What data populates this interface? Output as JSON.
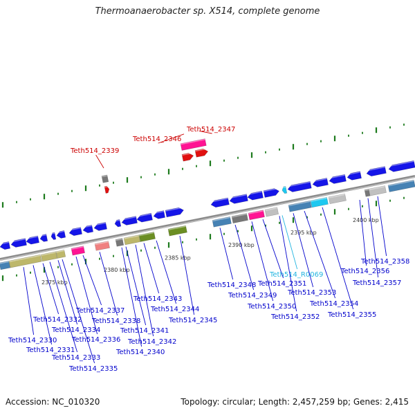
{
  "title": "Thermoanaerobacter sp. X514, complete genome",
  "accession": "Accession: NC_010320",
  "summary": "Topology: circular; Length: 2,457,259 bp; Genes: 2,415",
  "colors": {
    "cds_forward": "#1515e8",
    "rrna_trna": "#ff1493",
    "highlight_red": "#e11010",
    "label_blue": "#0000cc",
    "label_red": "#cc0000",
    "label_cyan": "#20b4e0",
    "gc_tick": "#1c7a1c"
  },
  "scale_labels": [
    "2375 kbp",
    "2380 kbp",
    "2385 kbp",
    "2390 kbp",
    "2395 kbp",
    "2400 kbp"
  ],
  "gene_labels": [
    {
      "text": "Teth514_2330",
      "color": "blue"
    },
    {
      "text": "Teth514_2331",
      "color": "blue"
    },
    {
      "text": "Teth514_2332",
      "color": "blue"
    },
    {
      "text": "Teth514_2333",
      "color": "blue"
    },
    {
      "text": "Teth514_2334",
      "color": "blue"
    },
    {
      "text": "Teth514_2335",
      "color": "blue"
    },
    {
      "text": "Teth514_2336",
      "color": "blue"
    },
    {
      "text": "Teth514_2337",
      "color": "blue"
    },
    {
      "text": "Teth514_2338",
      "color": "blue"
    },
    {
      "text": "Teth514_2339",
      "color": "red"
    },
    {
      "text": "Teth514_2340",
      "color": "blue"
    },
    {
      "text": "Teth514_2341",
      "color": "blue"
    },
    {
      "text": "Teth514_2342",
      "color": "blue"
    },
    {
      "text": "Teth514_2343",
      "color": "blue"
    },
    {
      "text": "Teth514_2344",
      "color": "blue"
    },
    {
      "text": "Teth514_2345",
      "color": "blue"
    },
    {
      "text": "Teth514_2346",
      "color": "red"
    },
    {
      "text": "Teth514_2347",
      "color": "red"
    },
    {
      "text": "Teth514_2348",
      "color": "blue"
    },
    {
      "text": "Teth514_2349",
      "color": "blue"
    },
    {
      "text": "Teth514_2350",
      "color": "blue"
    },
    {
      "text": "Teth514_2351",
      "color": "blue"
    },
    {
      "text": "Teth514_R0069",
      "color": "cyan"
    },
    {
      "text": "Teth514_2352",
      "color": "blue"
    },
    {
      "text": "Teth514_2353",
      "color": "blue"
    },
    {
      "text": "Teth514_2354",
      "color": "blue"
    },
    {
      "text": "Teth514_2355",
      "color": "blue"
    },
    {
      "text": "Teth514_2356",
      "color": "blue"
    },
    {
      "text": "Teth514_2357",
      "color": "blue"
    },
    {
      "text": "Teth514_2358",
      "color": "blue"
    }
  ]
}
